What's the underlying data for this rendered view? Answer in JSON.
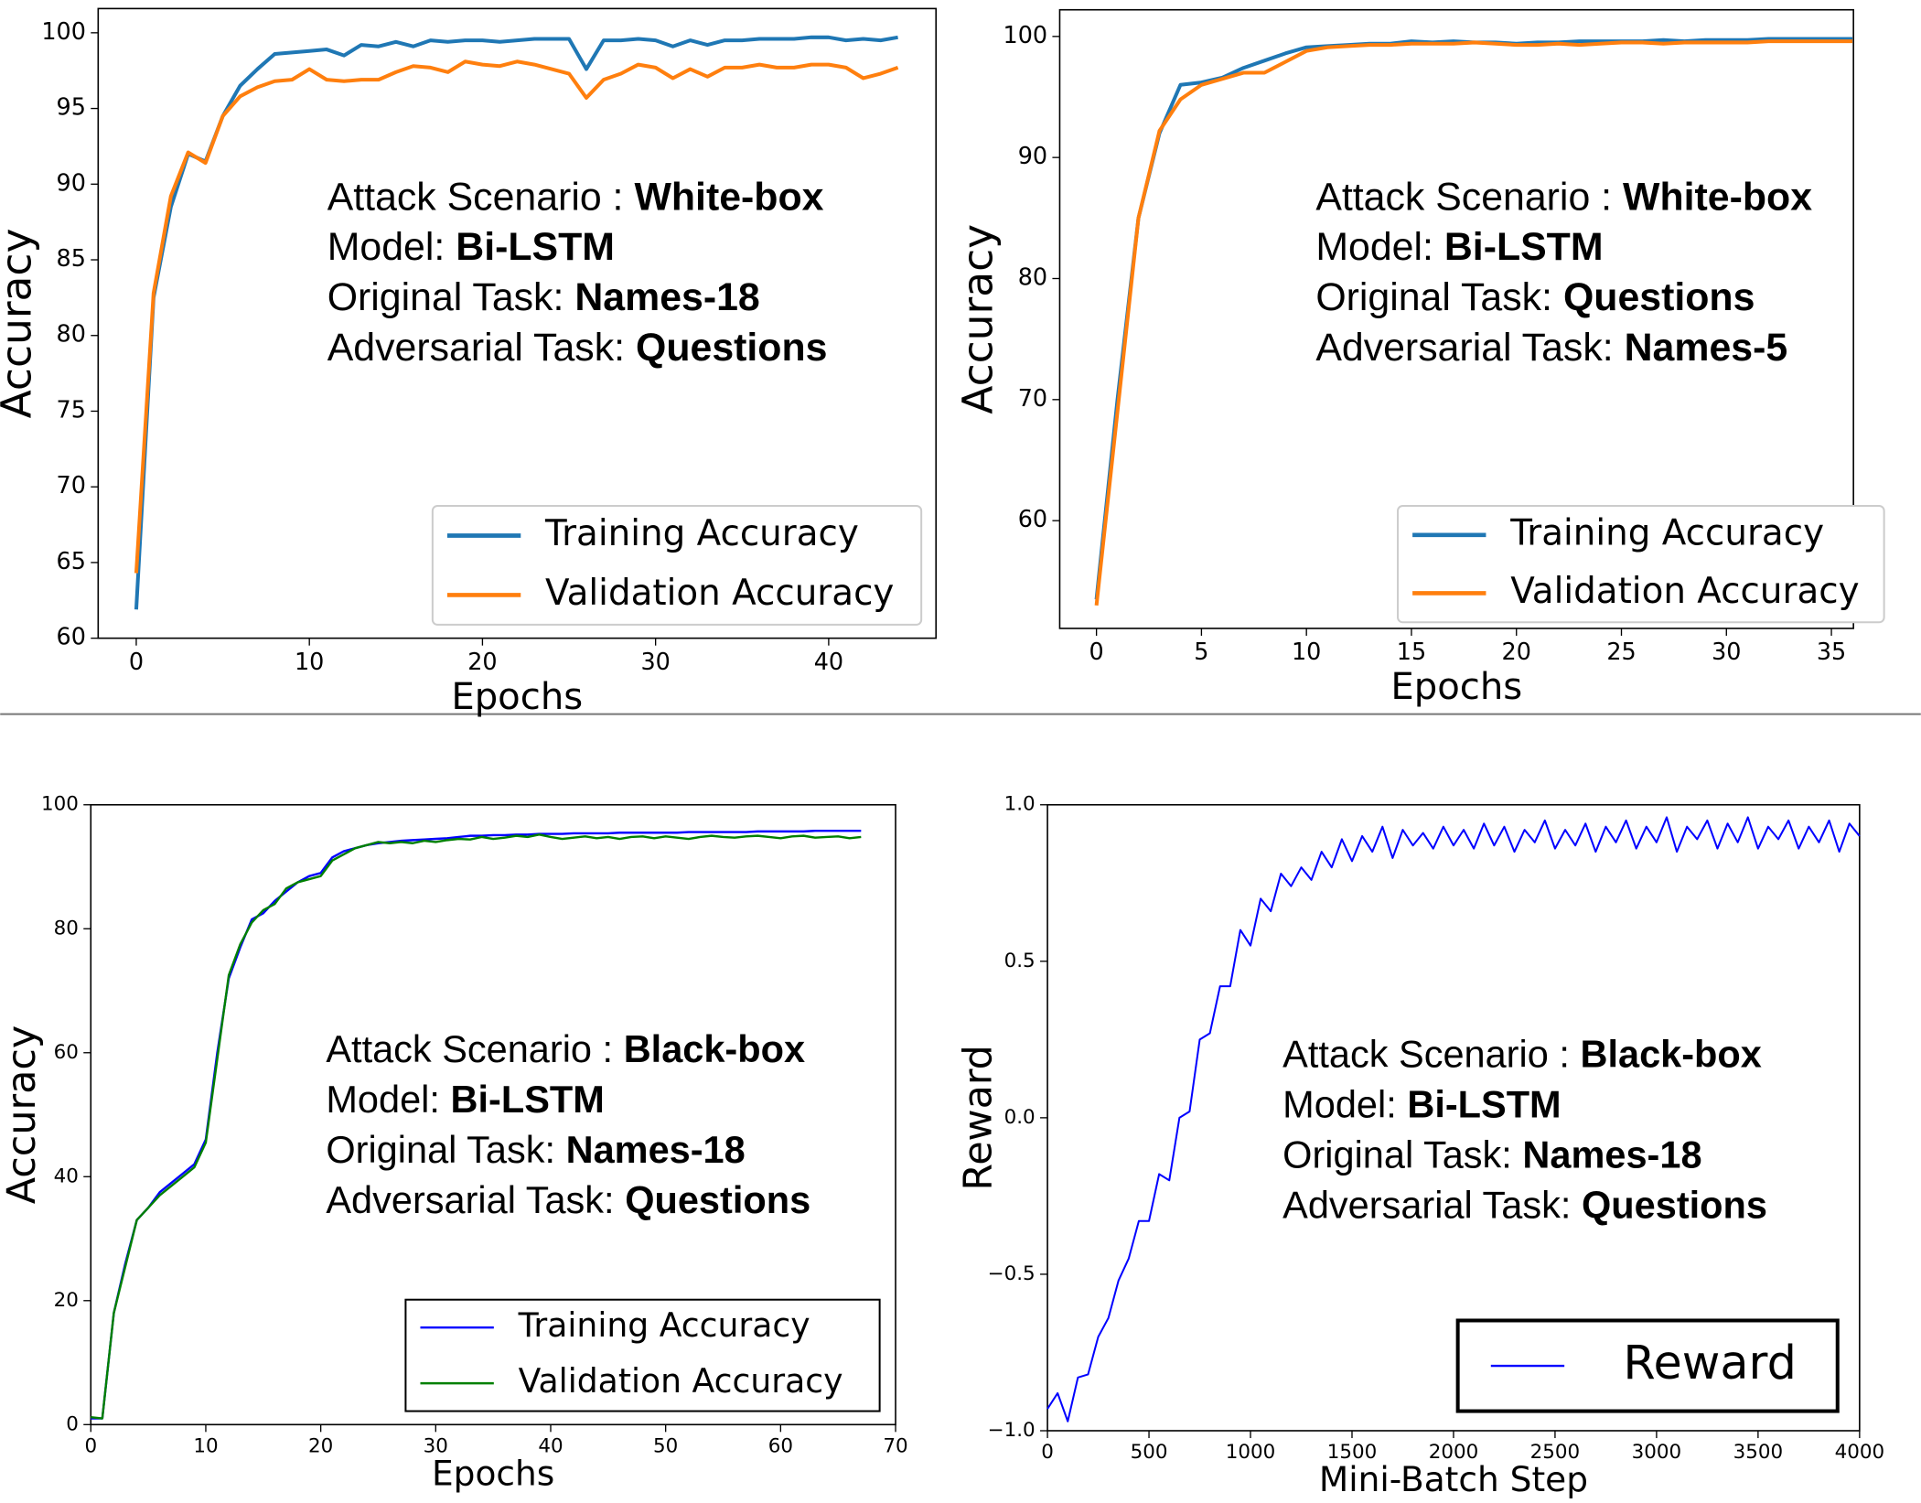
{
  "chart_data": [
    {
      "type": "line",
      "xlabel": "Epochs",
      "ylabel": "Accuracy",
      "legend": "lower right",
      "xlim": [
        -2.2,
        46.2
      ],
      "ylim": [
        60,
        101.6
      ],
      "xticks": [
        0,
        10,
        20,
        30,
        40
      ],
      "yticks": [
        60,
        65,
        70,
        75,
        80,
        85,
        90,
        95,
        100
      ],
      "x": [
        0,
        1,
        2,
        3,
        4,
        5,
        6,
        7,
        8,
        9,
        10,
        11,
        12,
        13,
        14,
        15,
        16,
        17,
        18,
        19,
        20,
        21,
        22,
        23,
        24,
        25,
        26,
        27,
        28,
        29,
        30,
        31,
        32,
        33,
        34,
        35,
        36,
        37,
        38,
        39,
        40,
        41,
        42,
        43,
        44
      ],
      "series": [
        {
          "name": "Training Accuracy",
          "color": "#1f77b4",
          "values": [
            61.9,
            82.5,
            88.5,
            92,
            91.5,
            94.5,
            96.5,
            97.6,
            98.6,
            98.7,
            98.8,
            98.9,
            98.5,
            99.2,
            99.1,
            99.4,
            99.1,
            99.5,
            99.4,
            99.5,
            99.5,
            99.4,
            99.5,
            99.6,
            99.6,
            99.6,
            97.6,
            99.5,
            99.5,
            99.6,
            99.5,
            99.1,
            99.5,
            99.2,
            99.5,
            99.5,
            99.6,
            99.6,
            99.6,
            99.7,
            99.7,
            99.5,
            99.6,
            99.5,
            99.7
          ]
        },
        {
          "name": "Validation Accuracy",
          "color": "#ff7f0e",
          "values": [
            64.3,
            82.8,
            89.2,
            92.1,
            91.4,
            94.5,
            95.8,
            96.4,
            96.8,
            96.9,
            97.6,
            96.9,
            96.8,
            96.9,
            96.9,
            97.4,
            97.8,
            97.7,
            97.4,
            98.1,
            97.9,
            97.8,
            98.1,
            97.9,
            97.6,
            97.3,
            95.7,
            96.9,
            97.3,
            97.9,
            97.7,
            97.0,
            97.6,
            97.1,
            97.7,
            97.7,
            97.9,
            97.7,
            97.7,
            97.9,
            97.9,
            97.7,
            97.0,
            97.3,
            97.7
          ]
        }
      ],
      "annotations": [
        {
          "key": "Attack Scenario :",
          "value": "White-box"
        },
        {
          "key": "Model:",
          "value": "Bi-LSTM"
        },
        {
          "key": "Original Task:",
          "value": "Names-18"
        },
        {
          "key": "Adversarial Task:",
          "value": "Questions"
        }
      ]
    },
    {
      "type": "line",
      "xlabel": "Epochs",
      "ylabel": "Accuracy",
      "legend": "lower right",
      "xlim": [
        -1.75,
        36.05
      ],
      "ylim": [
        51.1,
        102.2
      ],
      "xticks": [
        0,
        5,
        10,
        15,
        20,
        25,
        30,
        35
      ],
      "yticks": [
        60,
        70,
        80,
        90,
        100
      ],
      "x": [
        0,
        1,
        2,
        3,
        4,
        5,
        6,
        7,
        8,
        9,
        10,
        11,
        12,
        13,
        14,
        15,
        16,
        17,
        18,
        19,
        20,
        21,
        22,
        23,
        24,
        25,
        26,
        27,
        28,
        29,
        30,
        31,
        32,
        33,
        34,
        35,
        36
      ],
      "series": [
        {
          "name": "Training Accuracy",
          "color": "#1f77b4",
          "values": [
            53.5,
            70,
            85,
            92,
            96,
            96.2,
            96.6,
            97.4,
            98,
            98.6,
            99.1,
            99.2,
            99.3,
            99.4,
            99.4,
            99.6,
            99.5,
            99.6,
            99.5,
            99.5,
            99.4,
            99.5,
            99.5,
            99.6,
            99.6,
            99.6,
            99.6,
            99.7,
            99.6,
            99.7,
            99.7,
            99.7,
            99.8,
            99.8,
            99.8,
            99.8,
            99.8
          ]
        },
        {
          "name": "Validation Accuracy",
          "color": "#ff7f0e",
          "values": [
            53,
            69,
            85,
            92.2,
            94.8,
            96,
            96.5,
            97,
            97,
            97.9,
            98.8,
            99.1,
            99.2,
            99.3,
            99.3,
            99.4,
            99.4,
            99.4,
            99.5,
            99.4,
            99.3,
            99.3,
            99.4,
            99.3,
            99.4,
            99.5,
            99.5,
            99.4,
            99.5,
            99.5,
            99.5,
            99.5,
            99.6,
            99.6,
            99.6,
            99.6,
            99.6
          ]
        }
      ],
      "annotations": [
        {
          "key": "Attack Scenario :",
          "value": "White-box"
        },
        {
          "key": "Model:",
          "value": "Bi-LSTM"
        },
        {
          "key": "Original Task:",
          "value": "Questions"
        },
        {
          "key": "Adversarial Task:",
          "value": "Names-5"
        }
      ]
    },
    {
      "type": "line",
      "xlabel": "Epochs",
      "ylabel": "Accuracy",
      "legend": "lower right",
      "xlim": [
        0,
        70
      ],
      "ylim": [
        0,
        100
      ],
      "xticks": [
        0,
        10,
        20,
        30,
        40,
        50,
        60,
        70
      ],
      "yticks": [
        0,
        20,
        40,
        60,
        80,
        100
      ],
      "x": [
        0,
        1,
        2,
        3,
        4,
        5,
        6,
        7,
        8,
        9,
        10,
        11,
        12,
        13,
        14,
        15,
        16,
        17,
        18,
        19,
        20,
        21,
        22,
        23,
        24,
        25,
        26,
        27,
        28,
        29,
        30,
        31,
        32,
        33,
        34,
        35,
        36,
        37,
        38,
        39,
        40,
        41,
        42,
        43,
        44,
        45,
        46,
        47,
        48,
        49,
        50,
        51,
        52,
        53,
        54,
        55,
        56,
        57,
        58,
        59,
        60,
        61,
        62,
        63,
        64,
        65,
        66,
        67
      ],
      "series": [
        {
          "name": "Training Accuracy",
          "color": "#0000ff",
          "values": [
            1,
            1,
            18,
            26,
            33,
            35,
            37.5,
            39,
            40.5,
            42,
            46,
            60,
            72,
            77,
            81.5,
            82.5,
            84.5,
            86,
            87.5,
            88.5,
            89,
            91.5,
            92.5,
            93,
            93.5,
            93.8,
            94,
            94.2,
            94.3,
            94.4,
            94.5,
            94.6,
            94.8,
            95,
            95,
            95.1,
            95.1,
            95.2,
            95.2,
            95.3,
            95.3,
            95.3,
            95.4,
            95.4,
            95.4,
            95.4,
            95.5,
            95.5,
            95.5,
            95.5,
            95.5,
            95.5,
            95.6,
            95.6,
            95.6,
            95.6,
            95.6,
            95.6,
            95.7,
            95.7,
            95.7,
            95.7,
            95.7,
            95.8,
            95.8,
            95.8,
            95.8,
            95.8
          ]
        },
        {
          "name": "Validation Accuracy",
          "color": "#008000",
          "values": [
            1.2,
            1,
            18,
            25.5,
            33,
            35,
            37,
            38.5,
            40,
            41.5,
            45.5,
            59,
            72.5,
            77.5,
            81,
            83,
            84,
            86.5,
            87.5,
            88,
            88.5,
            91,
            92,
            93,
            93.5,
            94,
            93.8,
            94,
            93.8,
            94.2,
            94,
            94.3,
            94.5,
            94.4,
            94.8,
            94.5,
            94.7,
            95,
            94.8,
            95.2,
            94.8,
            94.5,
            94.7,
            94.9,
            94.6,
            94.8,
            94.5,
            94.8,
            94.9,
            94.6,
            94.9,
            94.7,
            94.5,
            94.8,
            95,
            94.8,
            94.7,
            94.9,
            95,
            94.8,
            94.6,
            94.9,
            95,
            94.7,
            94.8,
            94.9,
            94.6,
            94.8
          ]
        }
      ],
      "annotations": [
        {
          "key": "Attack Scenario :",
          "value": "Black-box"
        },
        {
          "key": "Model:",
          "value": "Bi-LSTM"
        },
        {
          "key": "Original Task:",
          "value": "Names-18"
        },
        {
          "key": "Adversarial Task:",
          "value": "Questions"
        }
      ]
    },
    {
      "type": "line",
      "xlabel": "Mini-Batch Step",
      "ylabel": "Reward",
      "legend": "lower right",
      "xlim": [
        0,
        4000
      ],
      "ylim": [
        -1,
        1
      ],
      "xticks": [
        0,
        500,
        1000,
        1500,
        2000,
        2500,
        3000,
        3500,
        4000
      ],
      "yticks": [
        {
          "value": -1,
          "label": "−1.0"
        },
        {
          "value": -0.5,
          "label": "−0.5"
        },
        {
          "value": 0,
          "label": "0.0"
        },
        0.5,
        {
          "value": 1,
          "label": "1.0"
        }
      ],
      "x": [
        0,
        50,
        100,
        150,
        200,
        250,
        300,
        350,
        400,
        450,
        500,
        550,
        600,
        650,
        700,
        750,
        800,
        850,
        900,
        950,
        1000,
        1050,
        1100,
        1150,
        1200,
        1250,
        1300,
        1350,
        1400,
        1450,
        1500,
        1550,
        1600,
        1650,
        1700,
        1750,
        1800,
        1850,
        1900,
        1950,
        2000,
        2050,
        2100,
        2150,
        2200,
        2250,
        2300,
        2350,
        2400,
        2450,
        2500,
        2550,
        2600,
        2650,
        2700,
        2750,
        2800,
        2850,
        2900,
        2950,
        3000,
        3050,
        3100,
        3150,
        3200,
        3250,
        3300,
        3350,
        3400,
        3450,
        3500,
        3550,
        3600,
        3650,
        3700,
        3750,
        3800,
        3850,
        3900,
        3950,
        4000
      ],
      "series": [
        {
          "name": "Reward",
          "color": "#0000ff",
          "values": [
            -0.93,
            -0.88,
            -0.97,
            -0.83,
            -0.82,
            -0.7,
            -0.64,
            -0.52,
            -0.45,
            -0.33,
            -0.33,
            -0.18,
            -0.2,
            0.0,
            0.02,
            0.25,
            0.27,
            0.42,
            0.42,
            0.6,
            0.55,
            0.7,
            0.66,
            0.78,
            0.74,
            0.8,
            0.76,
            0.85,
            0.8,
            0.89,
            0.82,
            0.9,
            0.85,
            0.93,
            0.83,
            0.92,
            0.87,
            0.91,
            0.86,
            0.93,
            0.87,
            0.92,
            0.86,
            0.94,
            0.87,
            0.93,
            0.85,
            0.92,
            0.88,
            0.95,
            0.86,
            0.92,
            0.87,
            0.94,
            0.85,
            0.93,
            0.88,
            0.95,
            0.86,
            0.93,
            0.88,
            0.96,
            0.85,
            0.93,
            0.89,
            0.95,
            0.86,
            0.94,
            0.88,
            0.96,
            0.86,
            0.93,
            0.89,
            0.95,
            0.86,
            0.93,
            0.88,
            0.95,
            0.85,
            0.94,
            0.9
          ]
        }
      ],
      "annotations": [
        {
          "key": "Attack Scenario :",
          "value": "Black-box"
        },
        {
          "key": "Model:",
          "value": "Bi-LSTM"
        },
        {
          "key": "Original Task:",
          "value": "Names-18"
        },
        {
          "key": "Adversarial Task:",
          "value": "Questions"
        }
      ]
    }
  ]
}
